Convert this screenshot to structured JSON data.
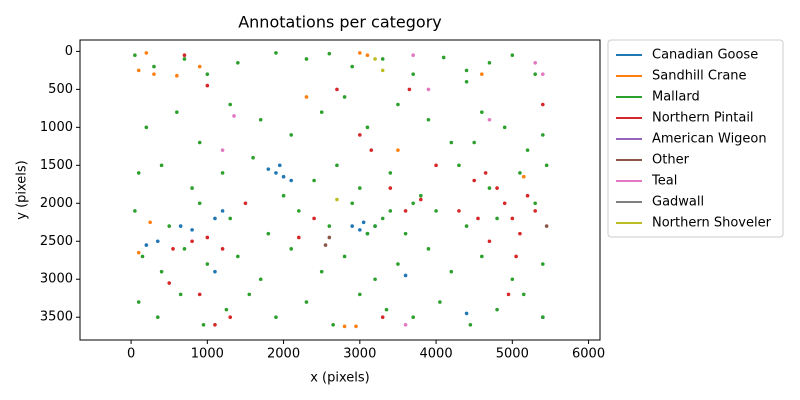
{
  "chart_data": {
    "type": "scatter",
    "title": "Annotations per category",
    "x_label": "x (pixels)",
    "y_label": "y (pixels)",
    "xlim": [
      -670,
      6150
    ],
    "ylim": [
      3800,
      -150
    ],
    "xticks": [
      0,
      1000,
      2000,
      3000,
      4000,
      5000,
      6000
    ],
    "yticks": [
      0,
      500,
      1000,
      1500,
      2000,
      2500,
      3000,
      3500
    ],
    "legend": "outside-right",
    "series": [
      {
        "name": "Canadian Goose",
        "color": "#1f77b4",
        "x": [
          1800,
          1900,
          2000,
          2100,
          1950,
          2900,
          3000,
          3100,
          3200,
          3050,
          650,
          800,
          1100,
          1200,
          200,
          350,
          3600,
          4400,
          5400,
          1100
        ],
        "values": [
          1550,
          1600,
          1650,
          1700,
          1500,
          2300,
          2350,
          2400,
          2300,
          2250,
          2300,
          2350,
          2200,
          2100,
          2550,
          2500,
          2950,
          3450,
          3500,
          2900
        ]
      },
      {
        "name": "Sandhill Crane",
        "color": "#ff7f0e",
        "x": [
          200,
          100,
          300,
          600,
          900,
          2300,
          3000,
          3100,
          2800,
          2950,
          5150,
          3500,
          100,
          250,
          4600
        ],
        "values": [
          20,
          250,
          300,
          320,
          200,
          600,
          20,
          50,
          3620,
          3620,
          1650,
          1300,
          2650,
          2250,
          300
        ]
      },
      {
        "name": "Mallard",
        "color": "#2ca02c",
        "x": [
          50,
          300,
          700,
          1000,
          1400,
          1900,
          2300,
          2600,
          2900,
          3300,
          3700,
          4100,
          4400,
          4700,
          5000,
          5300,
          200,
          600,
          900,
          1300,
          1700,
          2100,
          2500,
          2800,
          3100,
          3500,
          3900,
          4200,
          4600,
          4900,
          5200,
          5400,
          100,
          400,
          800,
          1200,
          1600,
          2000,
          2400,
          2700,
          3000,
          3400,
          3800,
          4300,
          4700,
          5100,
          5450,
          50,
          500,
          900,
          1300,
          1800,
          2200,
          2600,
          2900,
          3300,
          3600,
          4000,
          4400,
          4800,
          5300,
          150,
          400,
          700,
          1000,
          1400,
          1700,
          2100,
          2500,
          2800,
          3200,
          3500,
          3900,
          4200,
          4600,
          5000,
          5400,
          100,
          350,
          650,
          950,
          1250,
          1550,
          1900,
          2300,
          2650,
          3000,
          3350,
          3700,
          4050,
          4450,
          4800,
          5150,
          5400,
          3100,
          3200,
          3400,
          3700,
          4500,
          4400
        ],
        "values": [
          50,
          200,
          100,
          300,
          150,
          20,
          100,
          30,
          200,
          100,
          300,
          80,
          250,
          150,
          50,
          300,
          1000,
          800,
          1200,
          700,
          900,
          1100,
          800,
          600,
          1000,
          700,
          900,
          1200,
          800,
          1000,
          1300,
          1100,
          1600,
          1500,
          1800,
          1600,
          1400,
          1900,
          1700,
          1500,
          1800,
          1600,
          1900,
          1500,
          1800,
          1600,
          1500,
          2100,
          2300,
          2000,
          2200,
          2400,
          2100,
          2300,
          2000,
          2200,
          2400,
          2100,
          2300,
          2200,
          2000,
          2700,
          2900,
          2600,
          2800,
          2700,
          3000,
          2600,
          2900,
          2700,
          3000,
          2800,
          2600,
          2900,
          2700,
          3000,
          2800,
          3300,
          3500,
          3200,
          3600,
          3400,
          3200,
          3500,
          3300,
          3600,
          3200,
          3400,
          3500,
          3300,
          3600,
          3400,
          3200,
          3500,
          2400,
          2300,
          2100,
          2000,
          1200,
          400
        ]
      },
      {
        "name": "Northern Pintail",
        "color": "#d62728",
        "x": [
          700,
          1000,
          2700,
          3000,
          3150,
          3400,
          3600,
          3800,
          4500,
          4650,
          4800,
          4900,
          5000,
          5100,
          5200,
          5300,
          4700,
          4550,
          5050,
          4950,
          550,
          800,
          1000,
          1200,
          500,
          900,
          1300,
          1100,
          2400,
          2200,
          3300,
          4300,
          5400,
          4000,
          3650,
          1500
        ],
        "values": [
          50,
          450,
          500,
          1100,
          1300,
          1800,
          2100,
          1950,
          1700,
          1600,
          1800,
          2000,
          2200,
          2400,
          1900,
          2100,
          2500,
          2200,
          2700,
          3200,
          2600,
          2500,
          2450,
          2600,
          3050,
          3200,
          3500,
          3600,
          2200,
          2450,
          3500,
          2100,
          700,
          1500,
          500,
          2000
        ]
      },
      {
        "name": "American Wigeon",
        "color": "#9467bd",
        "x": [],
        "values": []
      },
      {
        "name": "Other",
        "color": "#8c564b",
        "x": [
          2550,
          2600,
          5450
        ],
        "values": [
          2550,
          2450,
          2300
        ]
      },
      {
        "name": "Teal",
        "color": "#e377c2",
        "x": [
          1200,
          3700,
          5300,
          5400,
          3900,
          1350,
          3600,
          4700
        ],
        "values": [
          1300,
          50,
          150,
          300,
          500,
          850,
          3600,
          900
        ]
      },
      {
        "name": "Gadwall",
        "color": "#7f7f7f",
        "x": [],
        "values": []
      },
      {
        "name": "Northern Shoveler",
        "color": "#bcbd22",
        "x": [
          3200,
          3300,
          2700
        ],
        "values": [
          100,
          250,
          1950
        ]
      }
    ]
  }
}
